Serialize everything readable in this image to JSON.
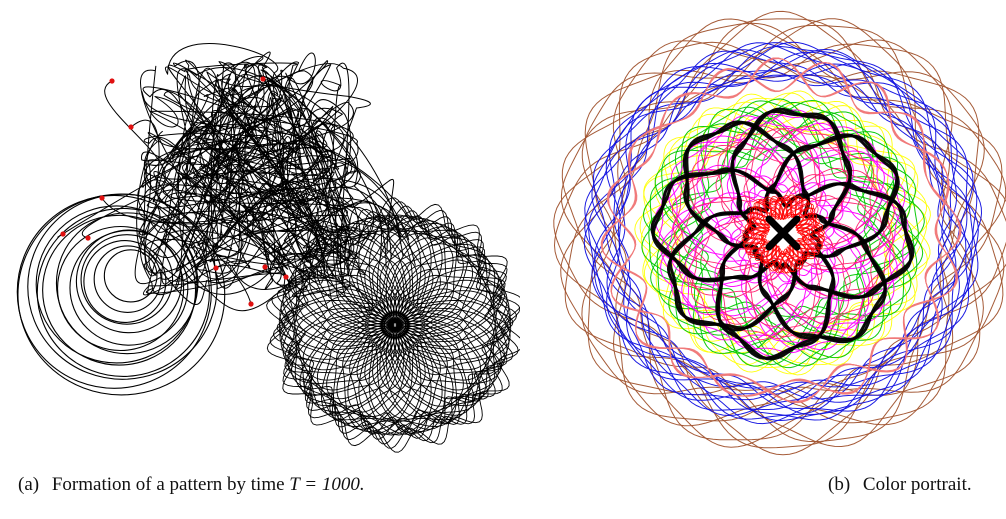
{
  "figure": {
    "panel_a": {
      "label": "(a)",
      "caption_text": "Formation of a pattern by time",
      "caption_math": "T = 1000.",
      "trajectory_color": "#000000",
      "start_point_color": "#e01010"
    },
    "panel_b": {
      "label": "(b)",
      "caption_text": "Color portrait.",
      "curve_colors": [
        "#a0522d",
        "#1010e0",
        "#f07a7a",
        "#ffff00",
        "#00c800",
        "#ff00ff",
        "#ff1e6e",
        "#000000",
        "#ff0000"
      ]
    }
  }
}
